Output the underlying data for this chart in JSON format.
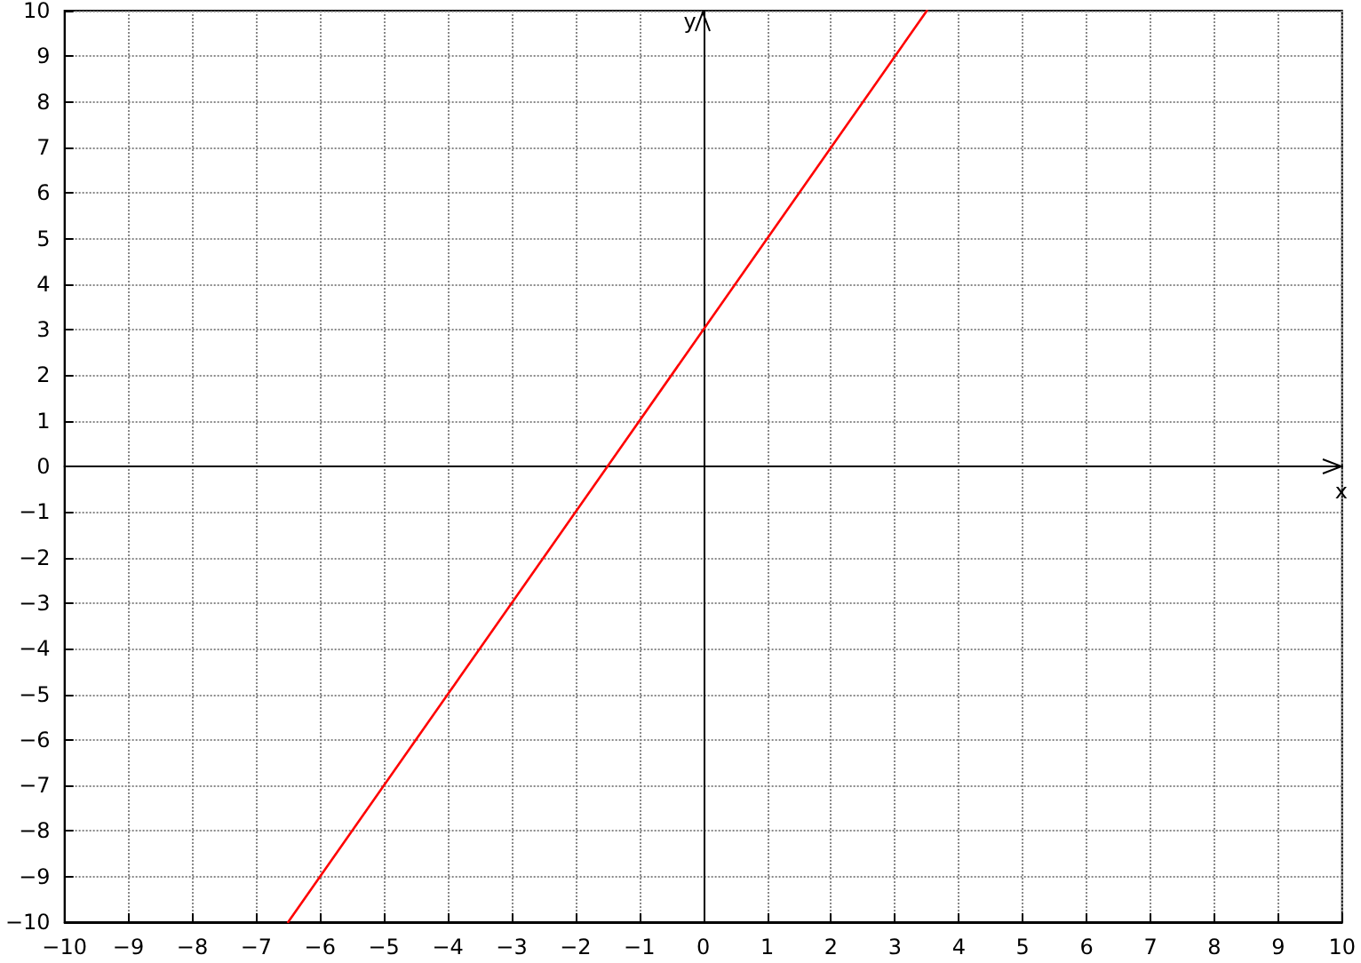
{
  "chart_data": {
    "type": "line",
    "xlabel": "x",
    "ylabel": "y",
    "xlim": [
      -10,
      10
    ],
    "ylim": [
      -10,
      10
    ],
    "xticks": [
      {
        "value": -10,
        "label": "−10"
      },
      {
        "value": -9,
        "label": "−9"
      },
      {
        "value": -8,
        "label": "−8"
      },
      {
        "value": -7,
        "label": "−7"
      },
      {
        "value": -6,
        "label": "−6"
      },
      {
        "value": -5,
        "label": "−5"
      },
      {
        "value": -4,
        "label": "−4"
      },
      {
        "value": -3,
        "label": "−3"
      },
      {
        "value": -2,
        "label": "−2"
      },
      {
        "value": -1,
        "label": "−1"
      },
      0,
      1,
      2,
      3,
      4,
      5,
      6,
      7,
      8,
      9,
      10
    ],
    "yticks": [
      {
        "value": -10,
        "label": "−10"
      },
      {
        "value": -9,
        "label": "−9"
      },
      {
        "value": -8,
        "label": "−8"
      },
      {
        "value": -7,
        "label": "−7"
      },
      {
        "value": -6,
        "label": "−6"
      },
      {
        "value": -5,
        "label": "−5"
      },
      {
        "value": -4,
        "label": "−4"
      },
      {
        "value": -3,
        "label": "−3"
      },
      {
        "value": -2,
        "label": "−2"
      },
      {
        "value": -1,
        "label": "−1"
      },
      0,
      1,
      2,
      3,
      4,
      5,
      6,
      7,
      8,
      9,
      10
    ],
    "grid": true,
    "marker": "none",
    "line_style": "solid",
    "series": [
      {
        "color": "#ff0000",
        "x": [
          -6.5,
          3.5
        ],
        "values": [
          -10,
          10
        ]
      }
    ]
  }
}
